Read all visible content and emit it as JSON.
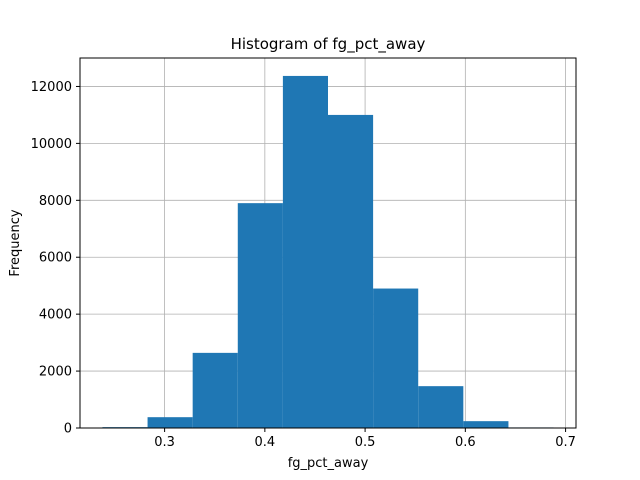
{
  "chart_data": {
    "type": "bar",
    "title": "Histogram of fg_pct_away",
    "xlabel": "fg_pct_away",
    "ylabel": "Frequency",
    "bin_edges": [
      0.238,
      0.283,
      0.328,
      0.373,
      0.418,
      0.463,
      0.508,
      0.553,
      0.598,
      0.643,
      0.688
    ],
    "values": [
      30,
      380,
      2640,
      7900,
      12370,
      11000,
      4900,
      1470,
      240,
      20
    ],
    "xlim": [
      0.2156,
      0.7104
    ],
    "ylim": [
      0,
      13000
    ],
    "xticks": [
      0.3,
      0.4,
      0.5,
      0.6,
      0.7
    ],
    "xtick_labels": [
      "0.3",
      "0.4",
      "0.5",
      "0.6",
      "0.7"
    ],
    "yticks": [
      0,
      2000,
      4000,
      6000,
      8000,
      10000,
      12000
    ],
    "ytick_labels": [
      "0",
      "2000",
      "4000",
      "6000",
      "8000",
      "10000",
      "12000"
    ],
    "grid": true,
    "colors": {
      "bar": "#1f77b4",
      "grid": "#b0b0b0",
      "axes": "#000000"
    }
  }
}
